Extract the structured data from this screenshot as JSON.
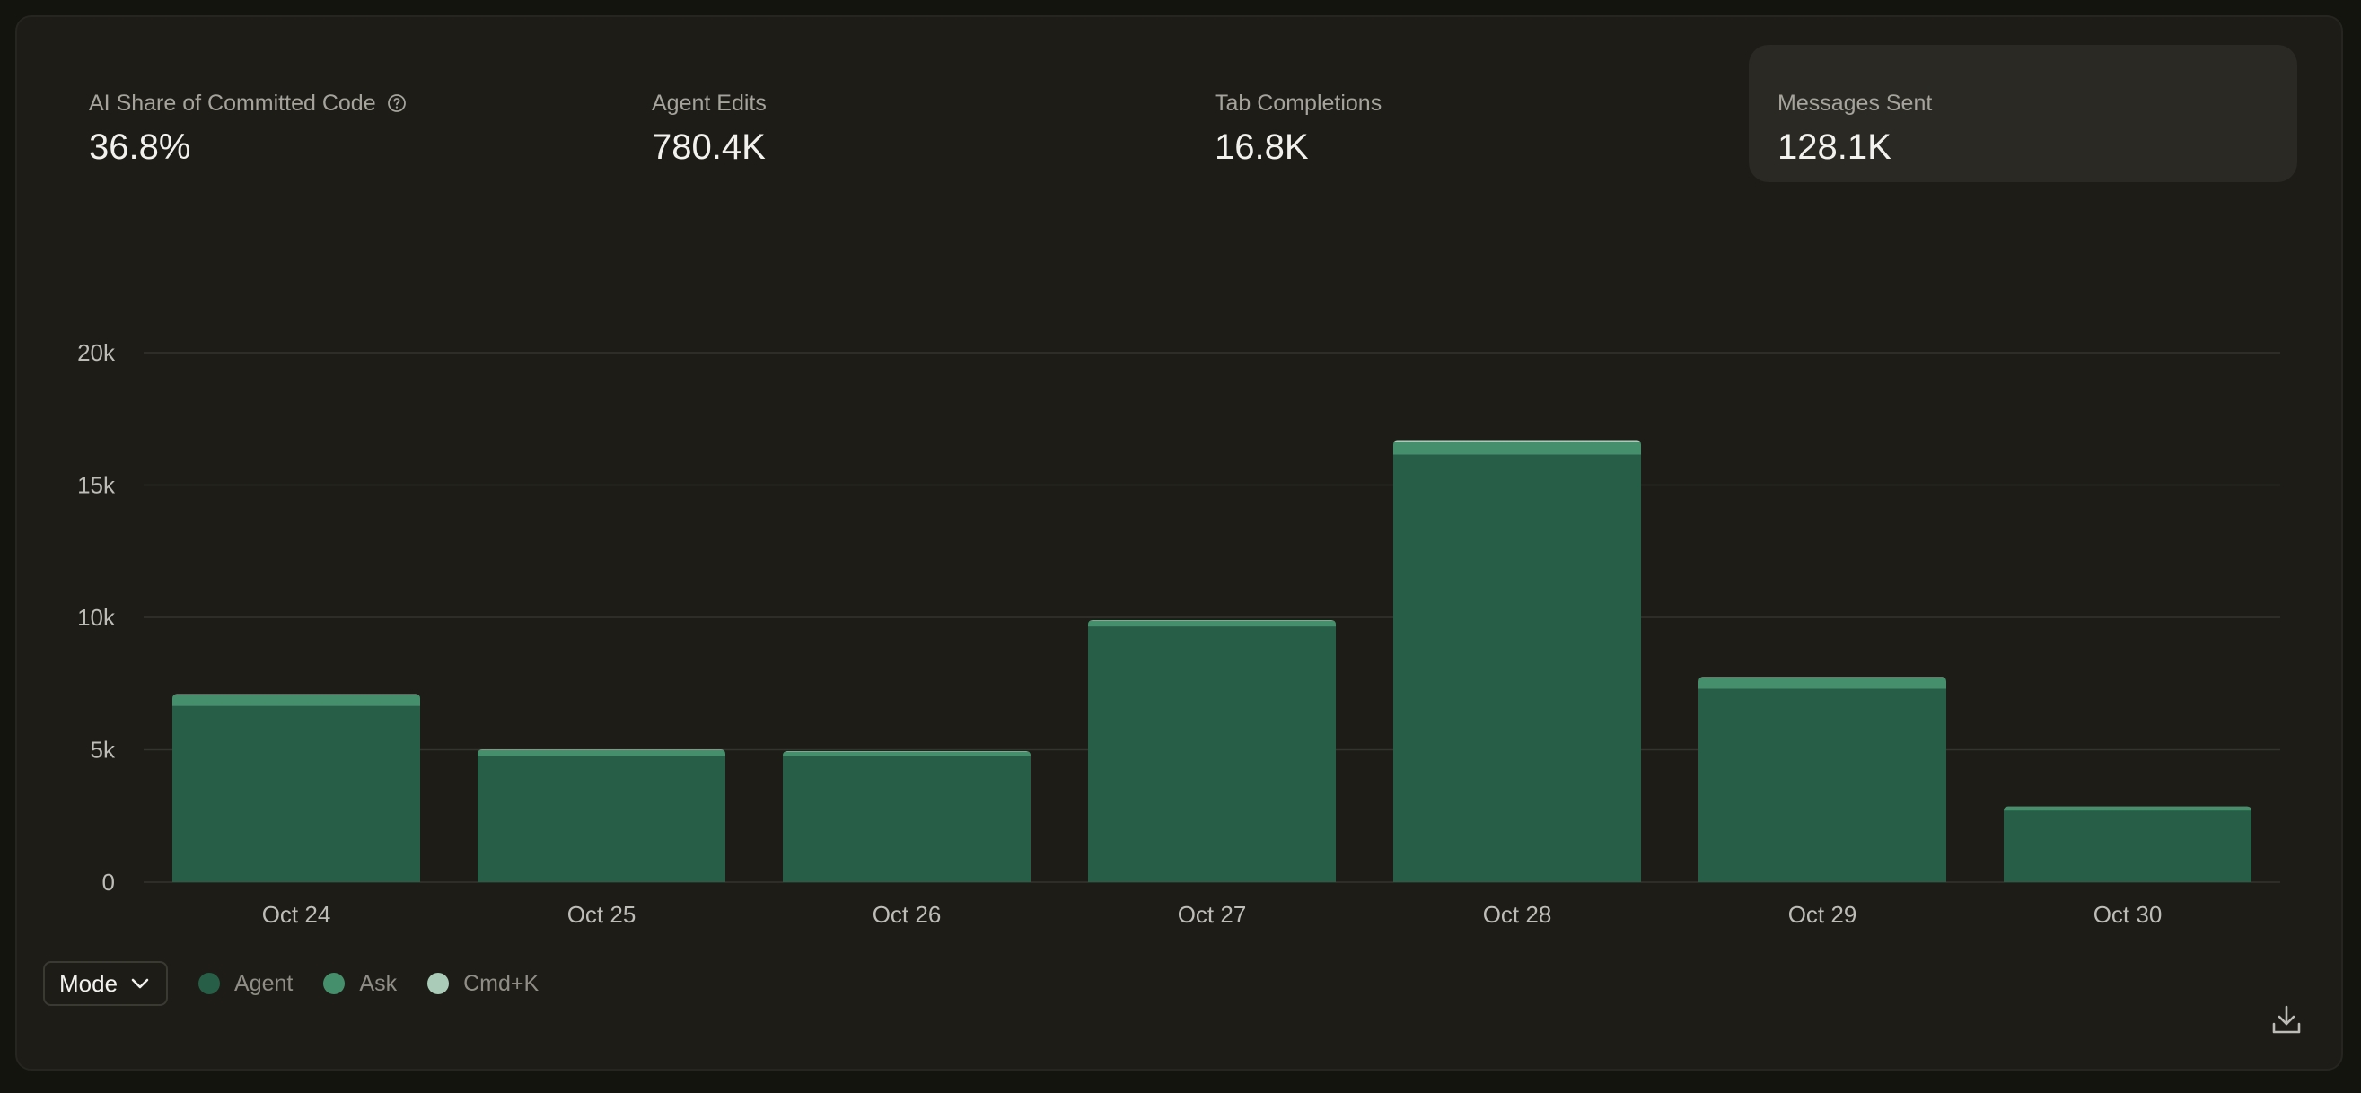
{
  "stats": [
    {
      "label": "AI Share of Committed Code",
      "value": "36.8%",
      "has_help": true
    },
    {
      "label": "Agent Edits",
      "value": "780.4K"
    },
    {
      "label": "Tab Completions",
      "value": "16.8K"
    },
    {
      "label": "Messages Sent",
      "value": "128.1K",
      "active": true
    }
  ],
  "legend": {
    "mode_label": "Mode",
    "items": [
      {
        "name": "Agent",
        "color": "#265e47"
      },
      {
        "name": "Ask",
        "color": "#468f6c"
      },
      {
        "name": "Cmd+K",
        "color": "#a9cbb8"
      }
    ]
  },
  "icons": {
    "help": "help-circle-icon",
    "mode_chevron": "chevron-down-icon",
    "download": "download-icon"
  },
  "colors": {
    "agent": "#265e47",
    "ask": "#468f6c",
    "cmdk": "#a9cbb8",
    "gridline": "#34332d",
    "axis_text": "#bdbcb6"
  },
  "chart_data": {
    "type": "bar",
    "stacked": true,
    "categories": [
      "Oct 24",
      "Oct 25",
      "Oct 26",
      "Oct 27",
      "Oct 28",
      "Oct 29",
      "Oct 30"
    ],
    "series": [
      {
        "name": "Agent",
        "values": [
          6650,
          4750,
          4750,
          9650,
          16150,
          7300,
          2700
        ]
      },
      {
        "name": "Ask",
        "values": [
          420,
          230,
          180,
          230,
          480,
          420,
          150
        ]
      },
      {
        "name": "Cmd+K",
        "values": [
          30,
          30,
          20,
          20,
          70,
          30,
          10
        ]
      }
    ],
    "ylim": [
      0,
      20000
    ],
    "yticks": [
      0,
      5000,
      10000,
      15000,
      20000
    ],
    "ytick_labels": [
      "0",
      "5k",
      "10k",
      "15k",
      "20k"
    ],
    "grid": true,
    "legend_position": "bottom-left"
  }
}
